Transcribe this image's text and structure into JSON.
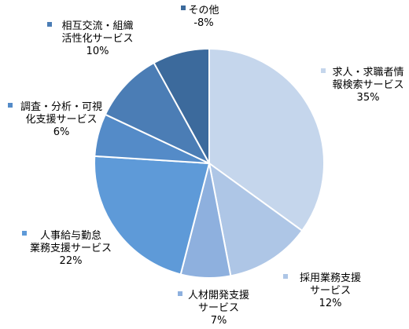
{
  "chart_data": {
    "type": "pie",
    "title": "",
    "slices": [
      {
        "label_lines": [
          "求人・求職者情",
          "報検索サービス"
        ],
        "value_label": "35%",
        "value": 35,
        "color": "#c5d6ec"
      },
      {
        "label_lines": [
          "採用業務支援",
          "サービス"
        ],
        "value_label": "12%",
        "value": 12,
        "color": "#aec6e6"
      },
      {
        "label_lines": [
          "人材開発支援",
          "サービス"
        ],
        "value_label": "7%",
        "value": 7,
        "color": "#8eb0de"
      },
      {
        "label_lines": [
          "人事給与勤怠",
          "業務支援サービス"
        ],
        "value_label": "22%",
        "value": 22,
        "color": "#5e9ad8"
      },
      {
        "label_lines": [
          "調査・分析・可視",
          "化支援サービス"
        ],
        "value_label": "6%",
        "value": 6,
        "color": "#548bc8"
      },
      {
        "label_lines": [
          "相互交流・組織",
          "活性化サービス"
        ],
        "value_label": "10%",
        "value": 10,
        "color": "#4b7db5"
      },
      {
        "label_lines": [
          "その他"
        ],
        "value_label": "8%",
        "value_prefix": "-",
        "value": 8,
        "color": "#3c6a9c"
      }
    ],
    "legend": "none"
  }
}
